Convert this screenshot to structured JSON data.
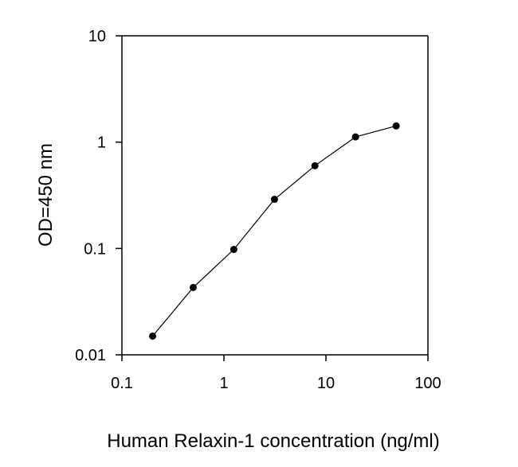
{
  "chart_data": {
    "type": "line",
    "title": "",
    "xlabel": "Human Relaxin-1 concentration (ng/ml)",
    "ylabel": "OD=450 nm",
    "xscale": "log",
    "yscale": "log",
    "xlim": [
      0.1,
      100
    ],
    "ylim": [
      0.01,
      10
    ],
    "x_ticks": [
      0.1,
      1,
      10,
      100
    ],
    "x_tick_labels": [
      "0.1",
      "1",
      "10",
      "100"
    ],
    "y_ticks": [
      0.01,
      0.1,
      1,
      10
    ],
    "y_tick_labels": [
      "0.01",
      "0.1",
      "1",
      "10"
    ],
    "grid": false,
    "legend": "none",
    "series": [
      {
        "x": [
          0.2,
          0.5,
          1.25,
          3.13,
          7.8,
          19.5,
          48.8
        ],
        "y": [
          0.015,
          0.043,
          0.098,
          0.29,
          0.6,
          1.12,
          1.42
        ]
      }
    ]
  },
  "colors": {
    "axis": "#000000",
    "line": "#000000",
    "marker": "#000000",
    "background": "#ffffff"
  }
}
